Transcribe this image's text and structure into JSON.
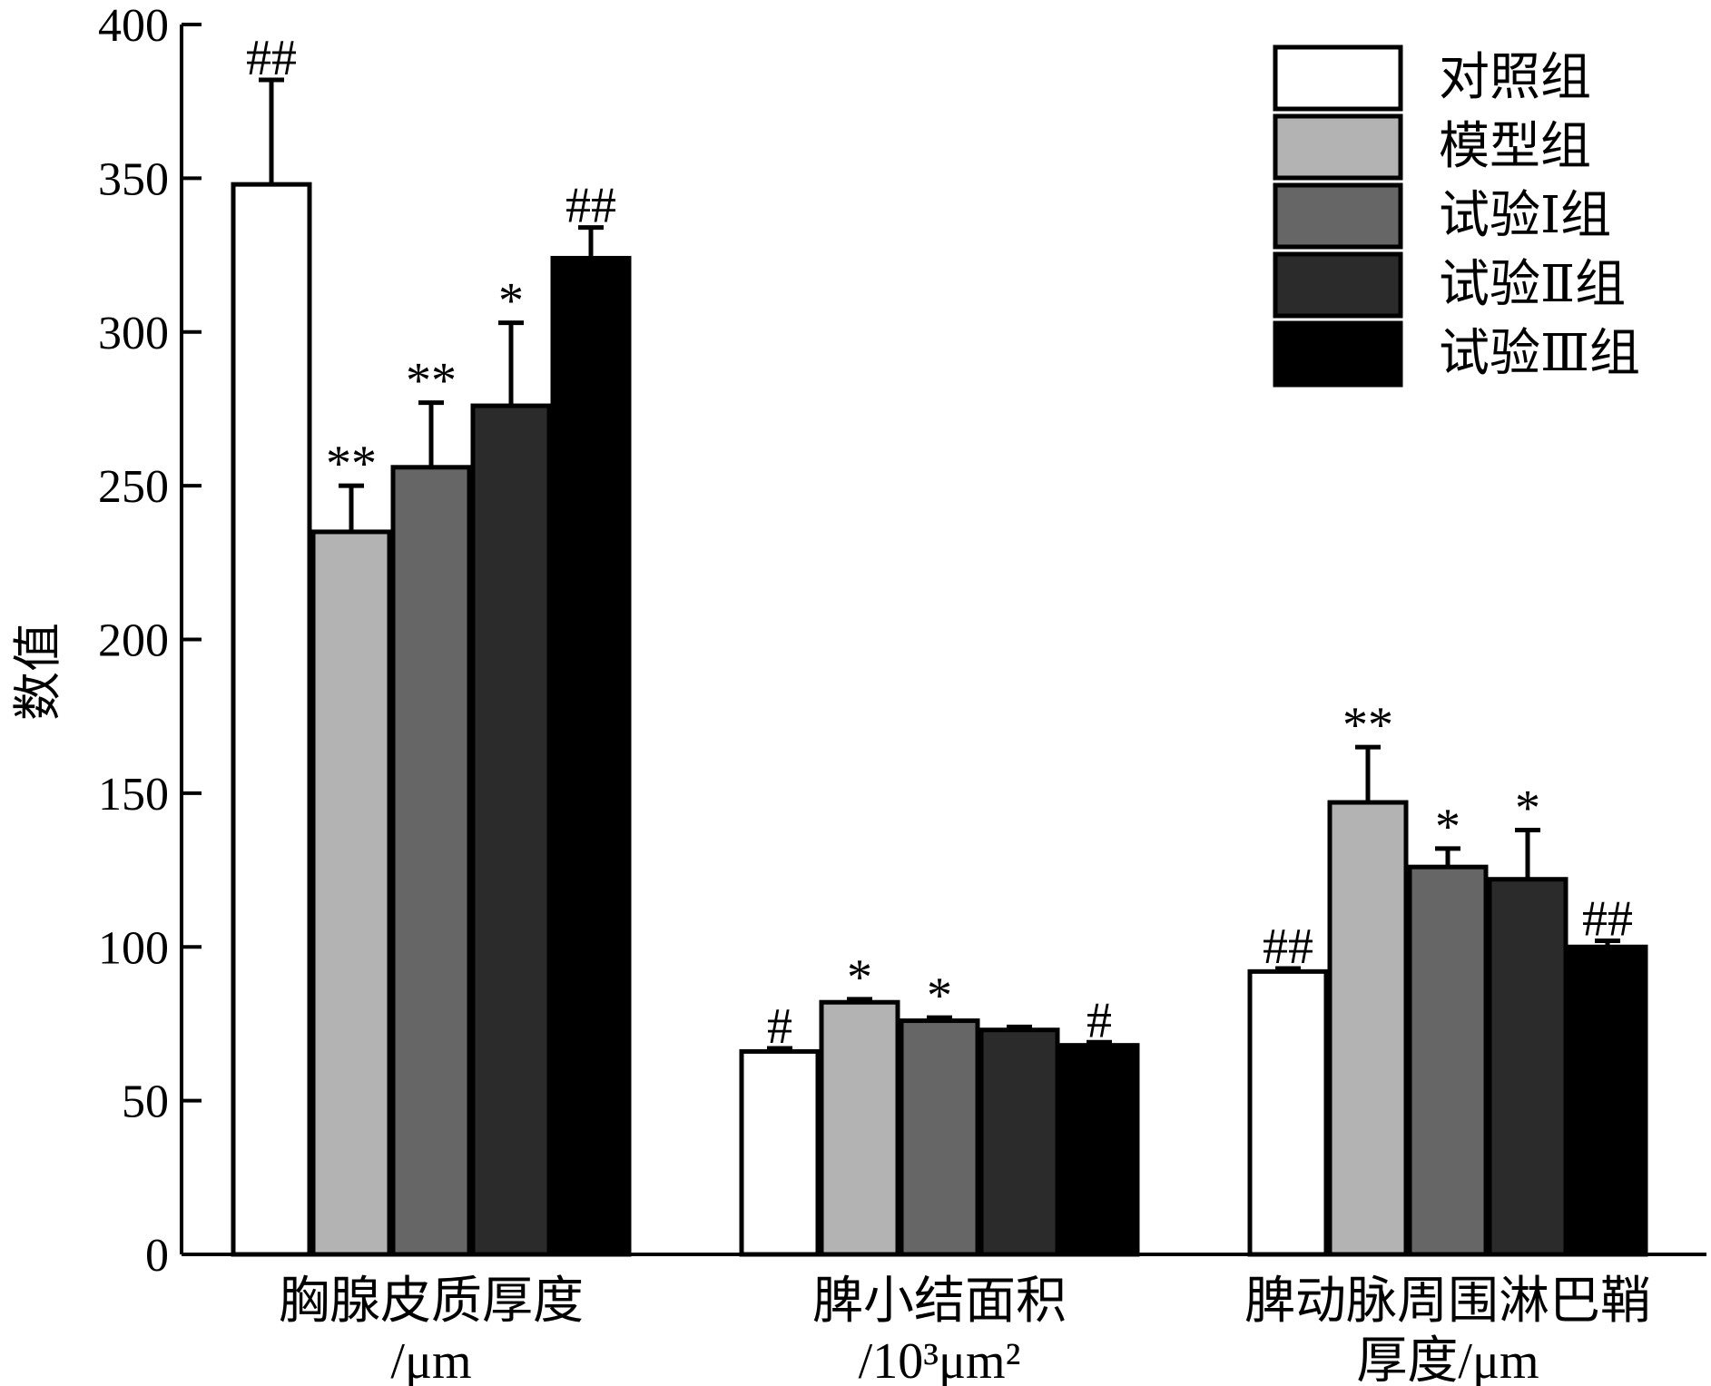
{
  "chart_data": {
    "type": "bar",
    "ylabel": "数值",
    "ylim": [
      0,
      400
    ],
    "yticks": [
      "0",
      "50",
      "100",
      "150",
      "200",
      "250",
      "300",
      "350",
      "400"
    ],
    "categories": [
      {
        "line1": "胸腺皮质厚度",
        "line2": "/μm"
      },
      {
        "line1": "脾小结面积",
        "line2": "/10³μm²"
      },
      {
        "line1": "脾动脉周围淋巴鞘",
        "line2": "厚度/μm"
      }
    ],
    "series": [
      {
        "name": "对照组",
        "color": "#ffffff",
        "values": [
          348,
          66,
          92
        ],
        "errors": [
          34,
          1,
          1
        ],
        "marks": [
          "##",
          "#",
          "##"
        ]
      },
      {
        "name": "模型组",
        "color": "#b3b3b3",
        "values": [
          235,
          82,
          147
        ],
        "errors": [
          15,
          1,
          18
        ],
        "marks": [
          "**",
          "*",
          "**"
        ]
      },
      {
        "name": "试验Ⅰ组",
        "color": "#666666",
        "values": [
          256,
          76,
          126
        ],
        "errors": [
          21,
          1,
          6
        ],
        "marks": [
          "**",
          "*",
          "*"
        ]
      },
      {
        "name": "试验Ⅱ组",
        "color": "#2b2b2b",
        "values": [
          276,
          73,
          122
        ],
        "errors": [
          27,
          1,
          16
        ],
        "marks": [
          "*",
          "",
          "*"
        ]
      },
      {
        "name": "试验Ⅲ组",
        "color": "#000000",
        "values": [
          324,
          68,
          100
        ],
        "errors": [
          10,
          1,
          2
        ],
        "marks": [
          "##",
          "#",
          "##"
        ]
      }
    ],
    "legend_position": "top-right",
    "grid": false
  }
}
